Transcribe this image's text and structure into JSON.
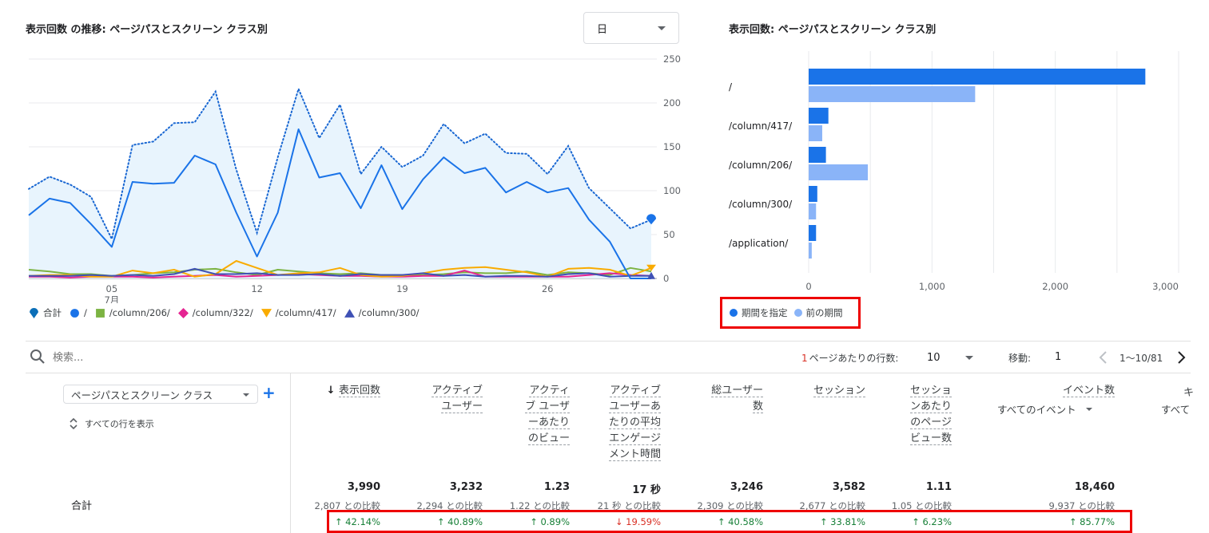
{
  "line_card": {
    "title": "表示回数 の推移: ページパスとスクリーン クラス別",
    "granularity": "日",
    "legend": [
      {
        "label": "合計",
        "color": "#1a73e8",
        "icon": "teardrop-icon"
      },
      {
        "label": "/",
        "color": "#1a73e8",
        "icon": "circle-icon"
      },
      {
        "label": "/column/206/",
        "color": "#7cb342",
        "icon": "square-icon"
      },
      {
        "label": "/column/322/",
        "color": "#e52592",
        "icon": "diamond-icon"
      },
      {
        "label": "/column/417/",
        "color": "#f9ab00",
        "icon": "triangle-down-icon"
      },
      {
        "label": "/column/300/",
        "color": "#3f51b5",
        "icon": "triangle-up-icon"
      }
    ],
    "x_ticks": [
      {
        "label": "05",
        "sub": "7月",
        "day": 5
      },
      {
        "label": "12",
        "sub": "",
        "day": 12
      },
      {
        "label": "19",
        "sub": "",
        "day": 19
      },
      {
        "label": "26",
        "sub": "",
        "day": 26
      }
    ],
    "y_ticks": [
      "250",
      "200",
      "150",
      "100",
      "50",
      "0"
    ]
  },
  "chart_data": [
    {
      "type": "line",
      "title": "表示回数 の推移: ページパスとスクリーン クラス別",
      "x": [
        1,
        2,
        3,
        4,
        5,
        6,
        7,
        8,
        9,
        10,
        11,
        12,
        13,
        14,
        15,
        16,
        17,
        18,
        19,
        20,
        21,
        22,
        23,
        24,
        25,
        26,
        27,
        28,
        29,
        30,
        31
      ],
      "x_tick_labels": [
        "05",
        "12",
        "19",
        "26"
      ],
      "x_sub_label": "7月",
      "ylim": [
        0,
        250
      ],
      "y_ticks": [
        0,
        50,
        100,
        150,
        200,
        250
      ],
      "grid": true,
      "legend_position": "bottom",
      "series": [
        {
          "name": "合計",
          "style": "dotted-area",
          "color": "#1a73e8",
          "values": [
            102,
            116,
            107,
            93,
            45,
            152,
            156,
            177,
            178,
            213,
            124,
            52,
            138,
            216,
            160,
            198,
            119,
            150,
            127,
            140,
            176,
            154,
            165,
            143,
            142,
            119,
            151,
            103,
            80,
            57,
            67
          ]
        },
        {
          "name": "/",
          "style": "solid",
          "color": "#1a73e8",
          "values": [
            72,
            91,
            86,
            62,
            36,
            110,
            108,
            109,
            140,
            130,
            75,
            25,
            75,
            170,
            115,
            120,
            80,
            129,
            79,
            113,
            138,
            120,
            126,
            98,
            110,
            98,
            103,
            67,
            42,
            0,
            0
          ]
        },
        {
          "name": "/column/206/",
          "style": "solid",
          "color": "#7cb342",
          "values": [
            10,
            8,
            5,
            5,
            3,
            4,
            6,
            7,
            10,
            11,
            7,
            4,
            10,
            8,
            6,
            5,
            6,
            4,
            4,
            4,
            5,
            7,
            6,
            6,
            8,
            4,
            7,
            6,
            4,
            12,
            8
          ]
        },
        {
          "name": "/column/322/",
          "style": "solid",
          "color": "#e52592",
          "values": [
            2,
            2,
            1,
            2,
            2,
            2,
            1,
            2,
            3,
            4,
            2,
            3,
            4,
            5,
            4,
            3,
            3,
            2,
            2,
            3,
            3,
            9,
            2,
            2,
            2,
            2,
            2,
            4,
            6,
            4,
            3
          ]
        },
        {
          "name": "/column/417/",
          "style": "solid",
          "color": "#f9ab00",
          "values": [
            3,
            4,
            4,
            2,
            2,
            9,
            6,
            10,
            2,
            5,
            20,
            12,
            4,
            6,
            7,
            12,
            4,
            2,
            3,
            6,
            10,
            12,
            13,
            10,
            7,
            2,
            11,
            12,
            10,
            3,
            12
          ]
        },
        {
          "name": "/column/300/",
          "style": "solid",
          "color": "#3f51b5",
          "values": [
            3,
            3,
            3,
            4,
            3,
            4,
            3,
            5,
            11,
            5,
            5,
            6,
            4,
            4,
            5,
            3,
            5,
            4,
            4,
            6,
            3,
            4,
            2,
            3,
            3,
            2,
            5,
            6,
            2,
            3,
            3
          ]
        }
      ]
    },
    {
      "type": "bar",
      "orientation": "horizontal",
      "title": "表示回数: ページパスとスクリーン クラス別",
      "categories": [
        "/",
        "/column/417/",
        "/column/206/",
        "/column/300/",
        "/application/"
      ],
      "xlim": [
        0,
        3000
      ],
      "x_ticks": [
        0,
        1000,
        2000,
        3000
      ],
      "grid": true,
      "legend_position": "bottom",
      "series": [
        {
          "name": "期間を指定",
          "color": "#1a73e8",
          "values": [
            2730,
            160,
            140,
            70,
            60
          ]
        },
        {
          "name": "前の期間",
          "color": "#8ab4f8",
          "values": [
            1350,
            110,
            480,
            60,
            25
          ]
        }
      ]
    }
  ],
  "bar_card": {
    "title": "表示回数: ページパスとスクリーン クラス別",
    "x_ticks": [
      "0",
      "1,000",
      "2,000",
      "3,000"
    ],
    "legend": [
      {
        "label": "期間を指定",
        "color": "#1a73e8"
      },
      {
        "label": "前の期間",
        "color": "#8ab4f8"
      }
    ]
  },
  "table": {
    "search_placeholder": "検索...",
    "rows_label_prefix": "1",
    "rows_label": "ページあたりの行数:",
    "rows_value": "10",
    "move_label": "移動:",
    "move_value": "1",
    "range_label": "1〜10/81",
    "dimension_select": "ページパスとスクリーン クラス",
    "show_all_rows": "すべての行を表示",
    "total_label": "合計",
    "event_sub": "すべてのイベント",
    "partial_col_top": "キ",
    "partial_col_bottom": "すべて",
    "columns": [
      {
        "lines": [
          "表示回数"
        ],
        "sorted": true,
        "value": "3,990",
        "compare": "2,807 との比較",
        "change": "↑ 42.14%",
        "dir": "up"
      },
      {
        "lines": [
          "アクティブ",
          "ユーザー"
        ],
        "value": "3,232",
        "compare": "2,294 との比較",
        "change": "↑ 40.89%",
        "dir": "up"
      },
      {
        "lines": [
          "アクティ",
          "ブ ユーザ",
          "ーあたり",
          "のビュー"
        ],
        "value": "1.23",
        "compare": "1.22 との比較",
        "change": "↑ 0.89%",
        "dir": "up"
      },
      {
        "lines": [
          "アクティブ",
          "ユーザーあ",
          "たりの平均",
          "エンゲージ",
          "メント時間"
        ],
        "value": "17 秒",
        "compare": "21 秒 との比較",
        "change": "↓ 19.59%",
        "dir": "down"
      },
      {
        "lines": [
          "総ユーザー",
          "数"
        ],
        "value": "3,246",
        "compare": "2,309 との比較",
        "change": "↑ 40.58%",
        "dir": "up"
      },
      {
        "lines": [
          "セッション"
        ],
        "value": "3,582",
        "compare": "2,677 との比較",
        "change": "↑ 33.81%",
        "dir": "up"
      },
      {
        "lines": [
          "セッショ",
          "ンあたり",
          "のページ",
          "ビュー数"
        ],
        "value": "1.11",
        "compare": "1.05 との比較",
        "change": "↑ 6.23%",
        "dir": "up"
      },
      {
        "lines": [
          "イベント数"
        ],
        "value": "18,460",
        "compare": "9,937 との比較",
        "change": "↑ 85.77%",
        "dir": "up"
      }
    ]
  }
}
